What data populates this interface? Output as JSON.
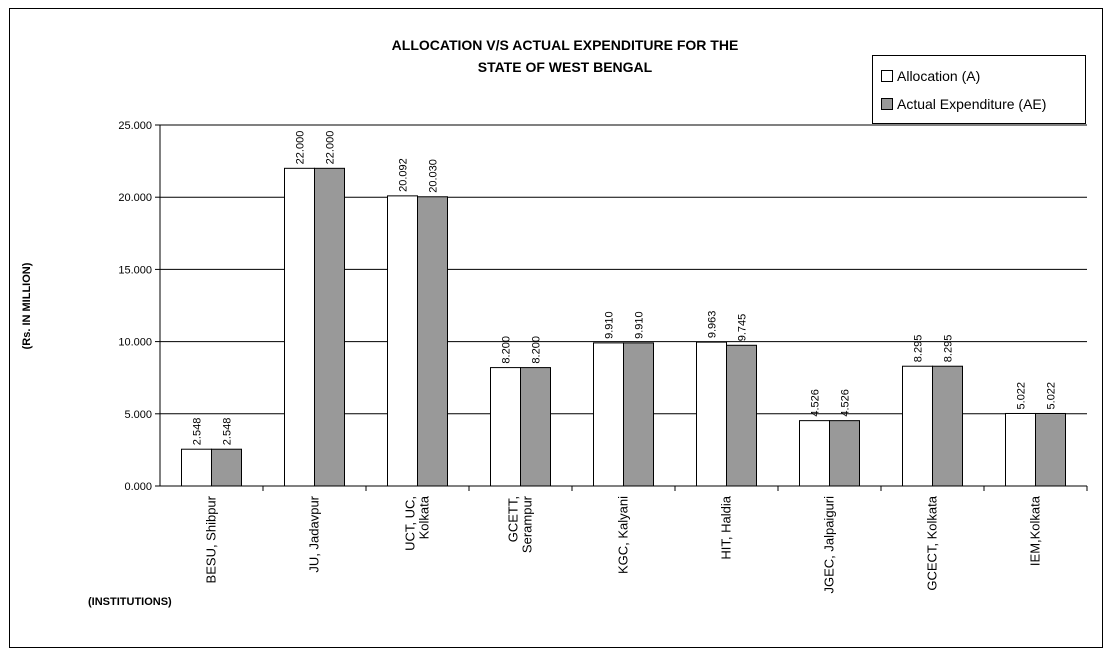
{
  "chart_data": {
    "type": "bar",
    "title": "ALLOCATION V/S ACTUAL EXPENDITURE FOR THE STATE OF WEST BENGAL",
    "title_lines": [
      "ALLOCATION V/S ACTUAL EXPENDITURE FOR THE",
      "STATE OF WEST BENGAL"
    ],
    "ylabel": "(Rs. IN MILLION)",
    "xlabel": "(INSTITUTIONS)",
    "ylim": [
      0,
      25
    ],
    "yticks": [
      "0.000",
      "5.000",
      "10.000",
      "15.000",
      "20.000",
      "25.000"
    ],
    "ytick_values": [
      0,
      5,
      10,
      15,
      20,
      25
    ],
    "grid": true,
    "legend_position": "top-right",
    "categories": [
      [
        "BESU, Shibpur"
      ],
      [
        "JU, Jadavpur"
      ],
      [
        "UCT, UC,",
        "Kolkata"
      ],
      [
        "GCETT,",
        "Serampur"
      ],
      [
        "KGC, Kalyani"
      ],
      [
        "HIT, Haldia"
      ],
      [
        "JGEC, Jalpaiguri"
      ],
      [
        "GCECT, Kolkata"
      ],
      [
        "IEM,Kolkata"
      ]
    ],
    "series": [
      {
        "name": "Allocation (A)",
        "color": "#ffffff",
        "values": [
          2.548,
          22.0,
          20.092,
          8.2,
          9.91,
          9.963,
          4.526,
          8.295,
          5.022
        ],
        "labels": [
          "2.548",
          "22.000",
          "20.092",
          "8.200",
          "9.910",
          "9.963",
          "4.526",
          "8.295",
          "5.022"
        ]
      },
      {
        "name": "Actual Expenditure (AE)",
        "color": "#999999",
        "values": [
          2.548,
          22.0,
          20.03,
          8.2,
          9.91,
          9.745,
          4.526,
          8.295,
          5.022
        ],
        "labels": [
          "2.548",
          "22.000",
          "20.030",
          "8.200",
          "9.910",
          "9.745",
          "4.526",
          "8.295",
          "5.022"
        ]
      }
    ]
  }
}
